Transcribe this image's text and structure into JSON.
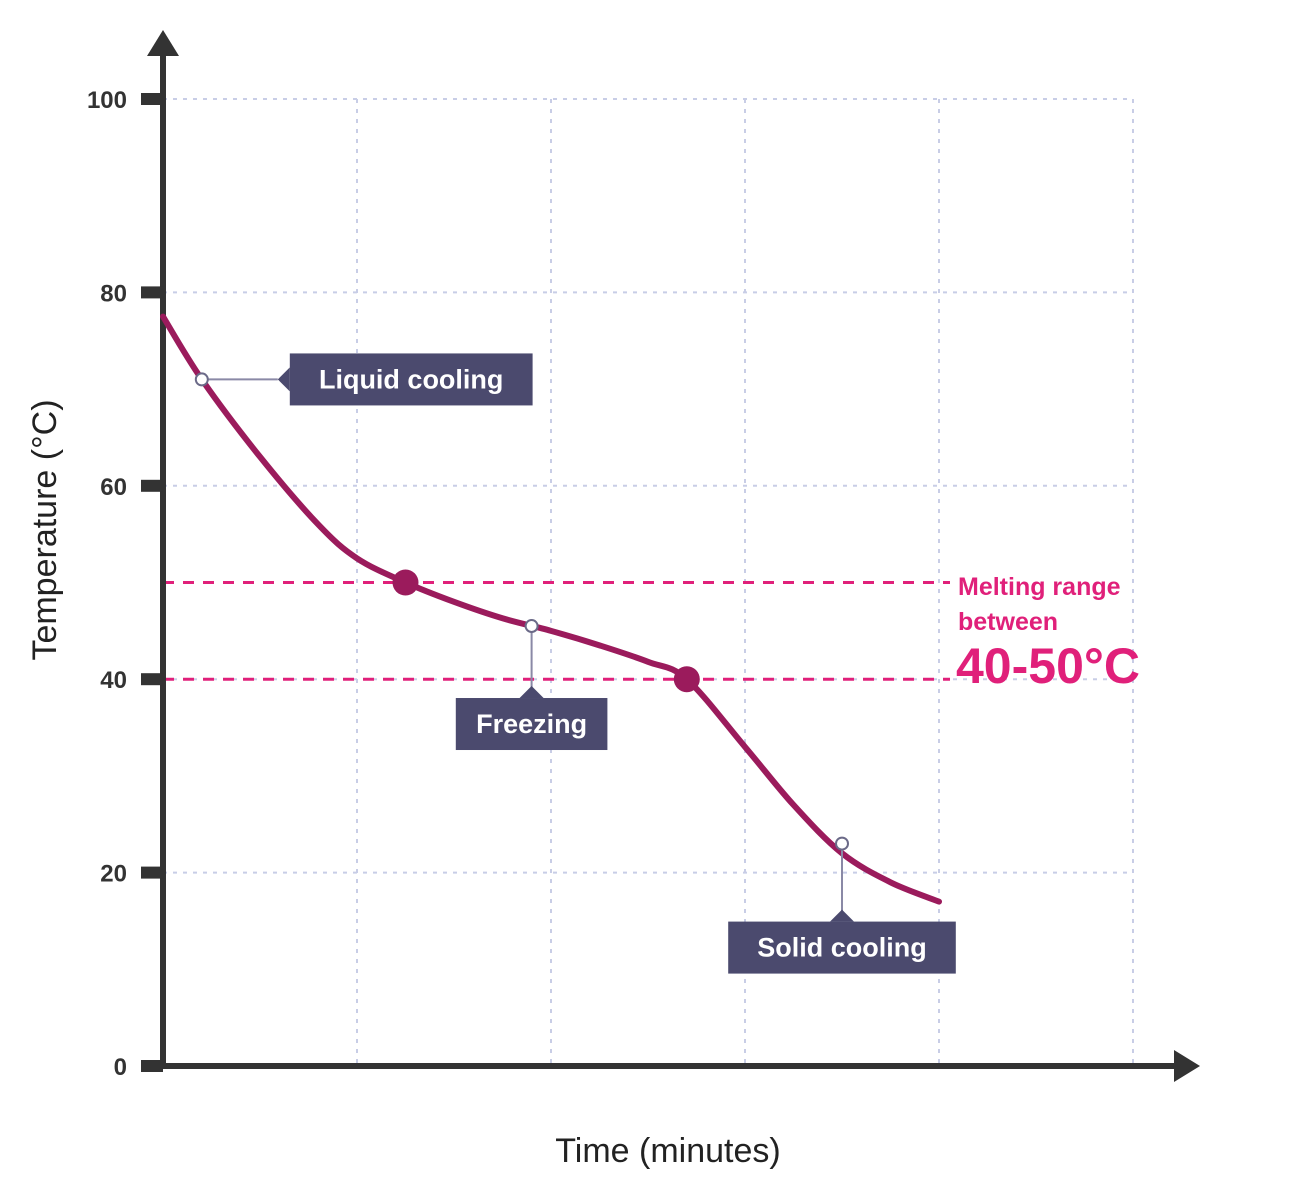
{
  "chart_data": {
    "type": "line",
    "xlabel": "Time (minutes)",
    "ylabel": "Temperature (°C)",
    "ylim": [
      0,
      100
    ],
    "y_ticks": [
      0,
      20,
      40,
      60,
      80,
      100
    ],
    "x_ticks_labeled": false,
    "grid": true,
    "series": [
      {
        "color": "#9b1b5c",
        "x": [
          0,
          0.2,
          0.5,
          0.8,
          1.0,
          1.25,
          1.5,
          1.75,
          2.0,
          2.25,
          2.5,
          2.7,
          3.0,
          3.25,
          3.5,
          3.75,
          4.0
        ],
        "y": [
          77.5,
          71,
          63,
          56,
          52.5,
          50,
          48,
          46.3,
          45,
          43.5,
          41.8,
          40,
          33,
          27,
          22,
          19,
          17
        ]
      }
    ],
    "markers": [
      {
        "x": 1.25,
        "y": 50,
        "style": "filled"
      },
      {
        "x": 2.7,
        "y": 40,
        "style": "filled"
      }
    ],
    "reference_lines": [
      {
        "y": 50,
        "style": "dashed",
        "color": "#e0207a"
      },
      {
        "y": 40,
        "style": "dashed",
        "color": "#e0207a"
      }
    ],
    "annotations": [
      {
        "text": "Liquid cooling",
        "x": 0.2,
        "y": 71
      },
      {
        "text": "Freezing",
        "x": 1.9,
        "y": 45.5
      },
      {
        "text": "Solid cooling",
        "x": 3.5,
        "y": 23
      }
    ],
    "range_label": {
      "line1": "Melting range",
      "line2": "between",
      "value": "40-50°C",
      "color": "#e0207a"
    }
  },
  "colors": {
    "curve": "#9b1b5c",
    "range": "#e0207a",
    "callout_bg": "#4b4a6e",
    "axis": "#333333",
    "grid": "#c8cde6"
  }
}
